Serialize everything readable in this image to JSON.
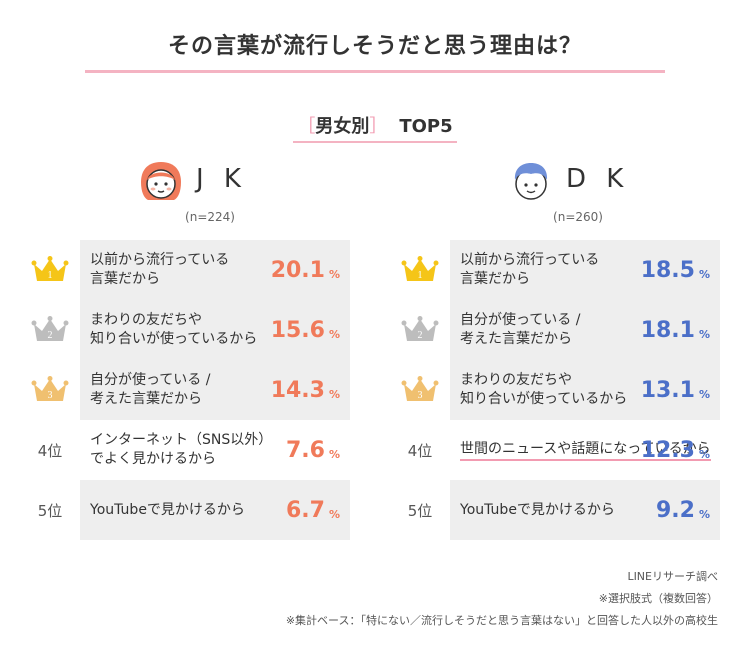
{
  "title": "その言葉が流行しそうだと思う理由は？",
  "subtitle": {
    "open_bracket": "［",
    "main": "男女別",
    "close_bracket": "］",
    "suffix": "TOP5"
  },
  "colors": {
    "jk_value": "#f07a5a",
    "dk_value": "#4b6fc8",
    "accent_pink": "#f29bb1",
    "gold": "#f5c518",
    "silver": "#bdbdbd",
    "bronze": "#f0c070"
  },
  "icons": {
    "jk": "girl-face-icon",
    "dk": "boy-face-icon",
    "rank1": "gold-crown-icon",
    "rank2": "silver-crown-icon",
    "rank3": "bronze-crown-icon"
  },
  "ranks": [
    "1",
    "2",
    "3",
    "4位",
    "5位"
  ],
  "chart_data": [
    {
      "type": "table",
      "group": "J K",
      "n": "(n=224)",
      "unit": "%",
      "categories": [
        "以前から流行っている\n言葉だから",
        "まわりの友だちや\n知り合いが使っているから",
        "自分が使っている /\n考えた言葉だから",
        "インターネット（SNS以外）\nでよく見かけるから",
        "YouTubeで見かけるから"
      ],
      "values": [
        "20.1",
        "15.6",
        "14.3",
        "7.6",
        "6.7"
      ]
    },
    {
      "type": "table",
      "group": "D K",
      "n": "(n=260)",
      "unit": "%",
      "categories": [
        "以前から流行っている\n言葉だから",
        "自分が使っている /\n考えた言葉だから",
        "まわりの友だちや\n知り合いが使っているから",
        "世間のニュースや\n話題になっているから",
        "YouTubeで見かけるから"
      ],
      "values": [
        "18.5",
        "18.1",
        "13.1",
        "12.3",
        "9.2"
      ]
    }
  ],
  "footer": {
    "source": "LINEリサーチ調べ",
    "method": "※選択肢式（複数回答）",
    "base": "※集計ベース：「特にない／流行しそうだと思う言葉はない」と回答した人以外の高校生"
  }
}
